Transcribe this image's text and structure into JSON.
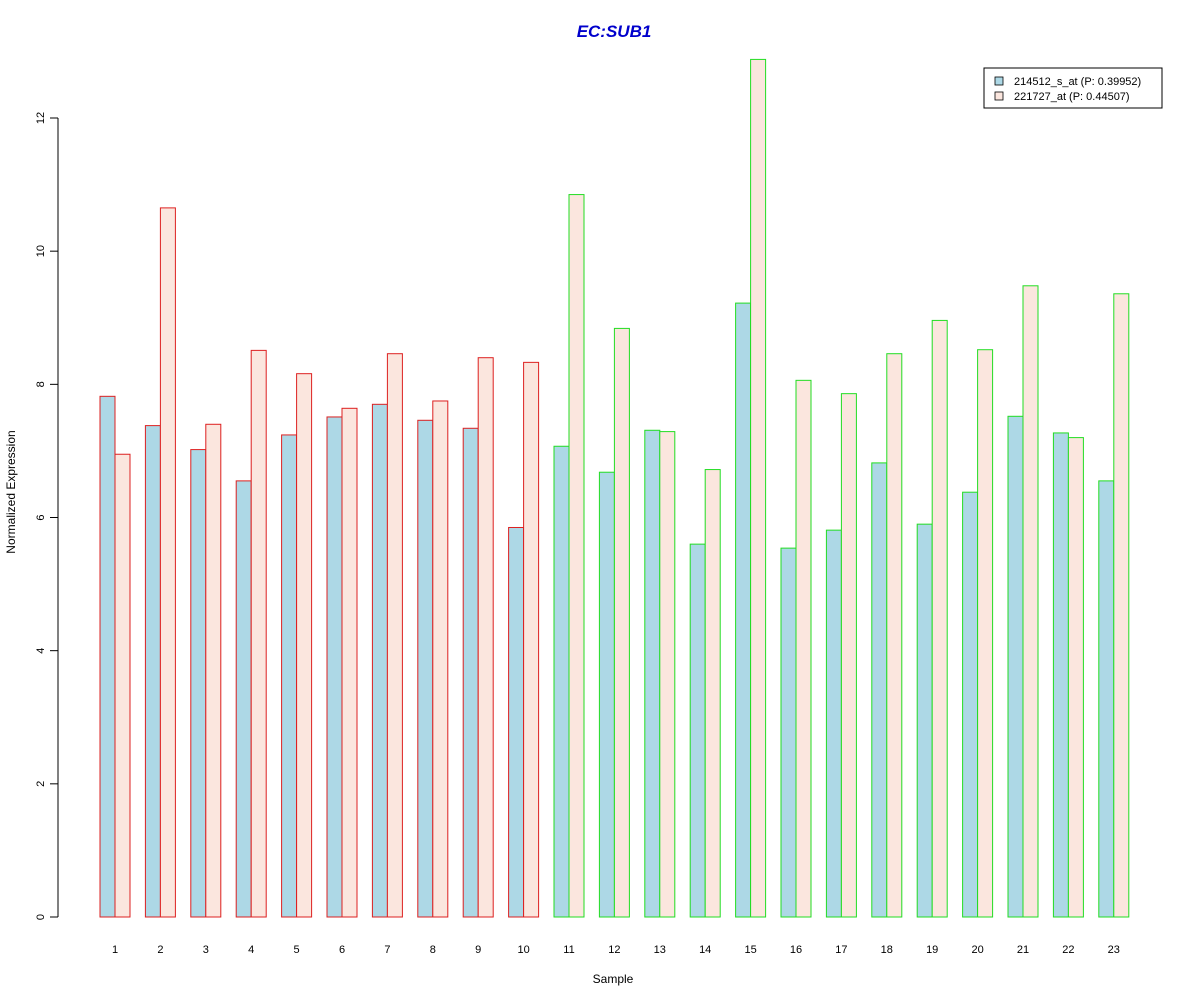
{
  "chart_data": {
    "type": "bar",
    "title": "EC:SUB1",
    "xlabel": "Sample",
    "ylabel": "Normalized Expression",
    "ylim": [
      0,
      12.9
    ],
    "yticks": [
      0,
      2,
      4,
      6,
      8,
      10,
      12
    ],
    "grid": false,
    "legend_position": "top-right",
    "categories": [
      "1",
      "2",
      "3",
      "4",
      "5",
      "6",
      "7",
      "8",
      "9",
      "10",
      "11",
      "12",
      "13",
      "14",
      "15",
      "16",
      "17",
      "18",
      "19",
      "20",
      "21",
      "22",
      "23"
    ],
    "sample_border_colors": [
      "#dd2020",
      "#dd2020",
      "#dd2020",
      "#dd2020",
      "#dd2020",
      "#dd2020",
      "#dd2020",
      "#dd2020",
      "#dd2020",
      "#dd2020",
      "#22dd22",
      "#22dd22",
      "#22dd22",
      "#22dd22",
      "#22dd22",
      "#22dd22",
      "#22dd22",
      "#22dd22",
      "#22dd22",
      "#22dd22",
      "#22dd22",
      "#22dd22",
      "#22dd22"
    ],
    "series": [
      {
        "name": "214512_s_at (P: 0.39952)",
        "fill": "#add8e6",
        "values": [
          7.82,
          7.38,
          7.02,
          6.55,
          7.24,
          7.51,
          7.7,
          7.46,
          7.34,
          5.85,
          7.07,
          6.68,
          7.31,
          5.6,
          9.22,
          5.54,
          5.81,
          6.82,
          5.9,
          6.38,
          7.52,
          7.27,
          6.55
        ]
      },
      {
        "name": "221727_at (P: 0.44507)",
        "fill": "#fbe6de",
        "values": [
          6.95,
          10.65,
          7.4,
          8.51,
          8.16,
          7.64,
          8.46,
          7.75,
          8.4,
          8.33,
          10.85,
          8.84,
          7.29,
          6.72,
          12.88,
          8.06,
          7.86,
          8.46,
          8.96,
          8.52,
          9.48,
          7.2,
          9.36
        ]
      }
    ]
  }
}
